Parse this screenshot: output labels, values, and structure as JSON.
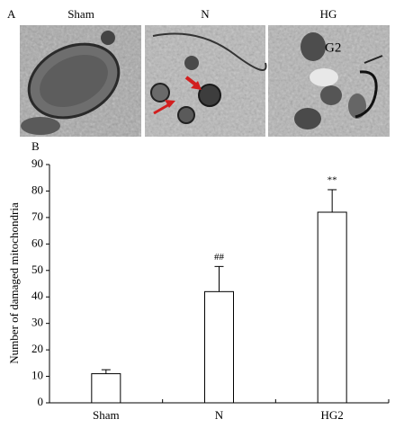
{
  "panel_a": {
    "label": "A",
    "images": [
      {
        "title": "Sham"
      },
      {
        "title": "N"
      },
      {
        "title": "HG",
        "annotation": "G2"
      }
    ]
  },
  "chart_data": {
    "type": "bar",
    "panel_label": "B",
    "ylabel": "Number of damaged mitochondria",
    "categories": [
      "Sham",
      "N",
      "HG2"
    ],
    "values": [
      11,
      42,
      72
    ],
    "errors": [
      1.5,
      9.5,
      8.5
    ],
    "annotations": [
      null,
      "##",
      "**"
    ],
    "color": "#ffffff",
    "ylim": [
      0,
      90
    ],
    "yticks": [
      0,
      10,
      20,
      30,
      40,
      50,
      60,
      70,
      80,
      90
    ]
  }
}
